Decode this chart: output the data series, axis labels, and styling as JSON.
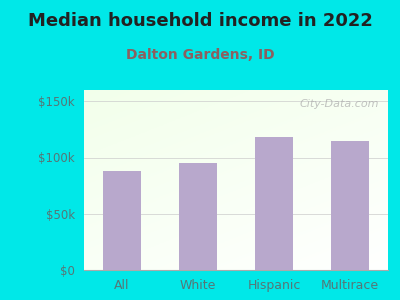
{
  "title": "Median household income in 2022",
  "subtitle": "Dalton Gardens, ID",
  "categories": [
    "All",
    "White",
    "Hispanic",
    "Multirace"
  ],
  "values": [
    88000,
    95000,
    118000,
    115000
  ],
  "bar_color": "#b8a8cc",
  "background_color": "#00e8e8",
  "title_color": "#222222",
  "subtitle_color": "#8b6060",
  "tick_label_color": "#557777",
  "yticks": [
    0,
    50000,
    100000,
    150000
  ],
  "ytick_labels": [
    "$0",
    "$50k",
    "$100k",
    "$150k"
  ],
  "ylim": [
    0,
    160000
  ],
  "watermark": "City-Data.com",
  "title_fontsize": 13,
  "subtitle_fontsize": 10,
  "tick_fontsize": 8.5,
  "xtick_fontsize": 9
}
